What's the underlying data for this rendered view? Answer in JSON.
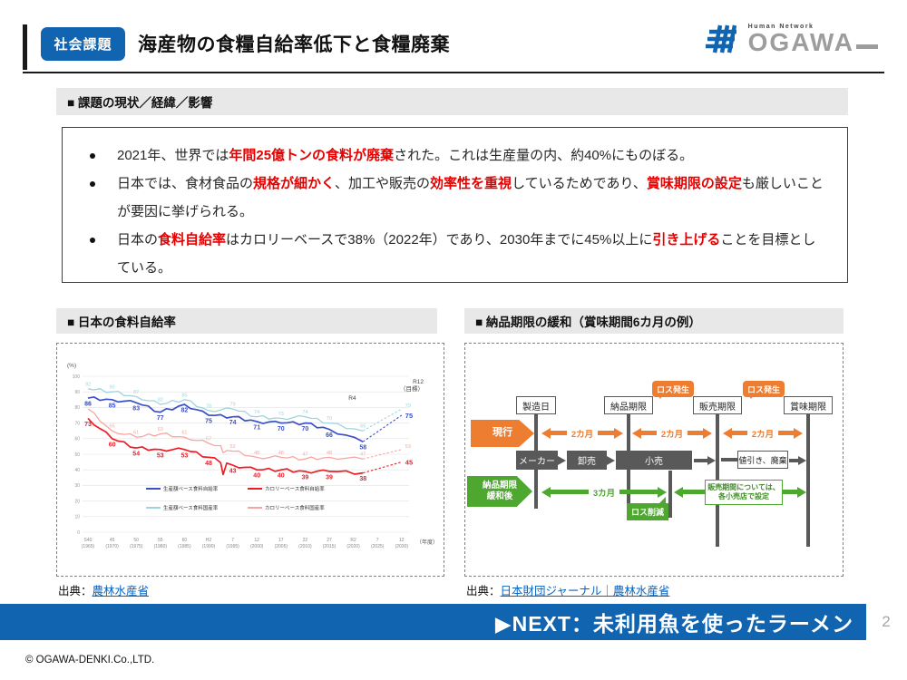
{
  "header": {
    "badge": "社会課題",
    "title": "海産物の食糧自給率低下と食糧廃棄",
    "logo_tagline": "Human Network",
    "logo_name": "OGAWA"
  },
  "section1": {
    "heading": "■ 課題の現状／経緯／影響",
    "bullets": [
      [
        {
          "t": "2021年、世界では"
        },
        {
          "t": "年間25億トンの食料が廃棄",
          "red": true
        },
        {
          "t": "された。これは生産量の内、約40%にものぼる。"
        }
      ],
      [
        {
          "t": "日本では、食材食品の"
        },
        {
          "t": "規格が細かく",
          "red": true
        },
        {
          "t": "、加工や販売の"
        },
        {
          "t": "効率性を重視",
          "red": true
        },
        {
          "t": "しているためであり、"
        },
        {
          "t": "賞味期限の設定",
          "red": true
        },
        {
          "t": "も厳しいことが要因に挙げられる。"
        }
      ],
      [
        {
          "t": "日本の"
        },
        {
          "t": "食料自給率",
          "red": true
        },
        {
          "t": "はカロリーベースで38%（2022年）であり、2030年までに45%以上に"
        },
        {
          "t": "引き上げる",
          "red": true
        },
        {
          "t": "ことを目標としている。"
        }
      ]
    ]
  },
  "left_panel": {
    "heading": "■ 日本の食料自給率",
    "source_prefix": "出典：",
    "source_link": "農林水産省"
  },
  "right_panel": {
    "heading": "■ 納品期限の緩和（賞味期間6カ月の例）",
    "source_prefix": "出典：",
    "source_link": "日本財団ジャーナル｜農林水産省",
    "diagram": {
      "milestones": [
        "製造日",
        "納品期限",
        "販売期限",
        "賞味期限"
      ],
      "loss_occurs": "ロス発生",
      "current": {
        "label": "現行",
        "spans": [
          "2カ月",
          "2カ月",
          "2カ月"
        ]
      },
      "chain": [
        "メーカー",
        "卸売",
        "小売"
      ],
      "discount": "値引き、廃棄",
      "relaxed": {
        "label": "納品期限\n緩和後",
        "span": "3カ月",
        "loss_reduction": "ロス削減",
        "note": "販売期間については、\n各小売店で設定"
      }
    }
  },
  "chart_data": {
    "type": "line",
    "title": "日本の食料自給率",
    "ylabel": "(%)",
    "ylim": [
      0,
      100
    ],
    "y_ticks": [
      0,
      10,
      20,
      30,
      40,
      50,
      60,
      70,
      80,
      90,
      100
    ],
    "x_unit": "（年度）",
    "categories": [
      [
        "S40",
        "(1965)"
      ],
      [
        "45",
        "(1970)"
      ],
      [
        "50",
        "(1975)"
      ],
      [
        "55",
        "(1980)"
      ],
      [
        "60",
        "(1985)"
      ],
      [
        "H2",
        "(1990)"
      ],
      [
        "7",
        "(1995)"
      ],
      [
        "12",
        "(2000)"
      ],
      [
        "17",
        "(2005)"
      ],
      [
        "22",
        "(2010)"
      ],
      [
        "27",
        "(2015)"
      ],
      [
        "R2",
        "(2020)"
      ],
      [
        "7",
        "(2025)"
      ],
      [
        "12",
        "(2030)"
      ]
    ],
    "annotations": {
      "actual": "R4",
      "target": "R12\n（目標）"
    },
    "grid": true,
    "legend_position": "inside-bottom-left",
    "series": [
      {
        "name": "生産額ベース食料自給率",
        "color": "#3c50c8",
        "values": [
          86,
          85,
          83,
          77,
          82,
          75,
          74,
          71,
          70,
          70,
          66,
          58
        ],
        "target": 75,
        "label_side": "below"
      },
      {
        "name": "カロリーベース食料自給率",
        "color": "#ee1c25",
        "values": [
          73,
          60,
          54,
          53,
          53,
          48,
          43,
          40,
          40,
          39,
          39,
          38
        ],
        "target": 45,
        "label_side": "below",
        "dip": [
          5.6,
          37
        ]
      },
      {
        "name": "生産額ベース食料国産率",
        "color": "#9fd4de",
        "values": [
          92,
          90,
          87,
          82,
          85,
          78,
          79,
          74,
          73,
          74,
          70,
          65
        ],
        "target": 79,
        "label_side": "above"
      },
      {
        "name": "カロリーベース食料国産率",
        "color": "#f6a6a1",
        "values": [
          79,
          65,
          61,
          63,
          61,
          57,
          52,
          48,
          48,
          47,
          48,
          47
        ],
        "target": 53,
        "label_side": "above",
        "dip": [
          5.6,
          51
        ]
      }
    ]
  },
  "footer": {
    "next": "▶NEXT：未利用魚を使ったラーメン",
    "page": "2",
    "copyright": "© OGAWA-DENKI.Co.,LTD."
  }
}
